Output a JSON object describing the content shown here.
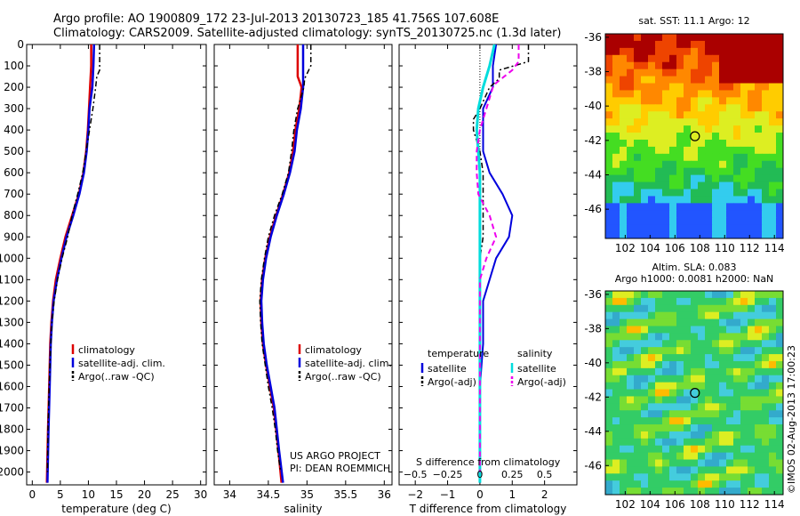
{
  "header": {
    "line1": "Argo profile: AO 1900809_172 23-Jul-2013 20130723_185 41.756S 107.608E",
    "line2": "Climatology: CARS2009. Satellite-adjusted climatology: synTS_20130725.nc (1.3d later)"
  },
  "depth_ticks": [
    0,
    100,
    200,
    300,
    400,
    500,
    600,
    700,
    800,
    900,
    1000,
    1100,
    1200,
    1300,
    1400,
    1500,
    1600,
    1700,
    1800,
    1900,
    2000
  ],
  "colors": {
    "climatology": "#dd0000",
    "satellite": "#0000dd",
    "argo": "#000000",
    "satellite_s": "#00dddd",
    "argo_s": "#ee00ee"
  },
  "chart_data": [
    {
      "type": "line",
      "xlabel": "temperature (deg C)",
      "xlim": [
        -1,
        31
      ],
      "ylim": [
        2060,
        0
      ],
      "xticks": [
        0,
        5,
        10,
        15,
        20,
        25,
        30
      ],
      "legend": [
        "climatology",
        "satellite-adj. clim.",
        "Argo(..raw -QC)"
      ],
      "series": [
        {
          "name": "climatology",
          "depth": [
            0,
            100,
            200,
            300,
            400,
            500,
            600,
            700,
            800,
            900,
            1000,
            1100,
            1200,
            1300,
            1400,
            1600,
            1800,
            2050
          ],
          "values": [
            10.5,
            10.5,
            10.3,
            10.1,
            9.9,
            9.6,
            9.1,
            8.3,
            7.1,
            5.9,
            5.0,
            4.2,
            3.7,
            3.4,
            3.2,
            3.0,
            2.8,
            2.6
          ]
        },
        {
          "name": "satellite-adj. clim.",
          "depth": [
            0,
            100,
            200,
            300,
            400,
            500,
            600,
            700,
            800,
            900,
            1000,
            1100,
            1200,
            1300,
            1400,
            1600,
            1800,
            2050
          ],
          "values": [
            11.0,
            10.9,
            10.7,
            10.2,
            10.0,
            9.7,
            9.2,
            8.4,
            7.3,
            6.1,
            5.2,
            4.4,
            3.8,
            3.5,
            3.3,
            3.1,
            2.9,
            2.7
          ]
        },
        {
          "name": "Argo(..raw -QC)",
          "depth": [
            0,
            120,
            150,
            200,
            300,
            400,
            500,
            600,
            700,
            800,
            900,
            1000,
            1100,
            1200,
            1300,
            1400,
            1600,
            1800,
            2000
          ],
          "values": [
            12.0,
            12.0,
            11.5,
            11.3,
            10.8,
            10.2,
            9.6,
            9.0,
            8.1,
            7.1,
            6.3,
            5.3,
            4.5,
            3.9,
            3.5,
            3.3,
            3.0,
            2.8,
            2.7
          ]
        }
      ]
    },
    {
      "type": "line",
      "xlabel": "salinity",
      "xlim": [
        33.8,
        36.1
      ],
      "ylim": [
        2060,
        0
      ],
      "xticks": [
        34,
        34.5,
        35,
        35.5,
        36
      ],
      "legend": [
        "climatology",
        "satellite-adj. clim.",
        "Argo(..raw -QC)"
      ],
      "series": [
        {
          "name": "climatology",
          "depth": [
            0,
            150,
            200,
            300,
            400,
            500,
            600,
            700,
            800,
            900,
            1000,
            1100,
            1200,
            1300,
            1400,
            1500,
            1600,
            1700,
            1800,
            1900,
            2050
          ],
          "values": [
            34.88,
            34.88,
            34.93,
            34.9,
            34.85,
            34.82,
            34.77,
            34.69,
            34.6,
            34.52,
            34.46,
            34.42,
            34.4,
            34.41,
            34.43,
            34.47,
            34.52,
            34.57,
            34.6,
            34.63,
            34.67
          ]
        },
        {
          "name": "satellite-adj. clim.",
          "depth": [
            0,
            150,
            200,
            300,
            400,
            500,
            600,
            700,
            800,
            900,
            1000,
            1100,
            1200,
            1300,
            1400,
            1500,
            1600,
            1700,
            1800,
            1900,
            2050
          ],
          "values": [
            34.95,
            34.95,
            34.95,
            34.92,
            34.87,
            34.84,
            34.78,
            34.7,
            34.61,
            34.53,
            34.47,
            34.43,
            34.41,
            34.42,
            34.44,
            34.48,
            34.53,
            34.58,
            34.61,
            34.64,
            34.69
          ]
        },
        {
          "name": "Argo(..raw -QC)",
          "depth": [
            0,
            100,
            160,
            200,
            300,
            400,
            500,
            600,
            700,
            800,
            900,
            1000,
            1100,
            1200,
            1300,
            1400,
            1500,
            1600,
            1700,
            1800,
            1900,
            2000
          ],
          "values": [
            35.05,
            35.05,
            34.97,
            34.96,
            34.88,
            34.83,
            34.8,
            34.76,
            34.68,
            34.58,
            34.5,
            34.45,
            34.41,
            34.39,
            34.4,
            34.42,
            34.46,
            34.5,
            34.55,
            34.59,
            34.62,
            34.66
          ]
        }
      ]
    },
    {
      "type": "line",
      "xlabel": "T difference from climatology",
      "xlabel_top": "S difference from climatology",
      "xlim": [
        -2.5,
        3.0
      ],
      "ylim": [
        2060,
        0
      ],
      "xticks": [
        -2,
        -1,
        0,
        1,
        2
      ],
      "xticks_labels": [
        "−2",
        "−1",
        "0",
        "1",
        "2"
      ],
      "xticks_top": [
        -0.5,
        -0.25,
        0,
        0.25,
        0.5
      ],
      "xticks_top_labels": [
        "−0.5",
        "−0.25",
        "0",
        "0.25",
        "0.5"
      ],
      "legend": {
        "left_title": "temperature",
        "right_title": "salinity",
        "left": [
          "satellite",
          "Argo(-adj)"
        ],
        "right": [
          "satellite",
          "Argo(-adj)"
        ]
      },
      "series": [
        {
          "name": "satellite",
          "depth": [
            0,
            100,
            200,
            300,
            400,
            500,
            600,
            700,
            800,
            900,
            1000,
            1100,
            1200,
            1400,
            1600,
            1800,
            2050
          ],
          "values": [
            0.5,
            0.4,
            0.4,
            0.1,
            0.1,
            0.1,
            0.3,
            0.7,
            1.0,
            0.9,
            0.5,
            0.3,
            0.1,
            0.1,
            0.0,
            0.0,
            0.0
          ]
        },
        {
          "name": "Argo(-adj)",
          "depth": [
            0,
            80,
            120,
            160,
            200,
            300,
            350,
            400,
            500,
            600,
            700,
            800,
            900,
            1000,
            1100,
            1200,
            1400,
            1600,
            1800,
            2000
          ],
          "values": [
            1.5,
            1.5,
            0.6,
            0.6,
            0.3,
            0.0,
            -0.2,
            -0.2,
            0.0,
            0.1,
            0.1,
            0.1,
            0.1,
            0.0,
            0.0,
            0.0,
            0.0,
            0.0,
            0.0,
            0.0
          ]
        },
        {
          "name": "satellite S",
          "depth": [
            0,
            100,
            200,
            300,
            400,
            500,
            600,
            700,
            800,
            900,
            1000,
            1200,
            1400,
            1600,
            1800,
            2050
          ],
          "values": [
            0.45,
            0.3,
            0.1,
            -0.05,
            -0.1,
            -0.05,
            0,
            0,
            0,
            0,
            0,
            0,
            0,
            0,
            0,
            0
          ]
        },
        {
          "name": "Argo(-adj) S",
          "depth": [
            0,
            80,
            120,
            180,
            200,
            300,
            400,
            500,
            600,
            700,
            800,
            900,
            1000,
            1100,
            1200,
            1400,
            1600,
            1800,
            2000
          ],
          "values": [
            1.2,
            1.2,
            1.0,
            0.5,
            0.4,
            0.2,
            0.0,
            -0.1,
            -0.1,
            -0.05,
            0.3,
            0.5,
            0.2,
            0.0,
            0.0,
            0.0,
            0.0,
            0.0,
            0.0
          ]
        }
      ]
    }
  ],
  "maps": {
    "top": {
      "title": "sat. SST: 11.1  Argo: 12",
      "lat_ticks": [
        -36,
        -38,
        -40,
        -42,
        -44,
        -46
      ],
      "lon_ticks": [
        102,
        104,
        106,
        108,
        110,
        112,
        114
      ]
    },
    "bottom": {
      "title1": "Altim. SLA: 0.083",
      "title2": "Argo h1000: 0.0081 h2000: NaN",
      "lat_ticks": [
        -36,
        -38,
        -40,
        -42,
        -44,
        -46
      ],
      "lon_ticks": [
        102,
        104,
        106,
        108,
        110,
        112,
        114
      ]
    },
    "float_position": {
      "lon": 107.608,
      "lat": -41.756
    }
  },
  "credit_line1": "US ARGO PROJECT",
  "credit_line2": "PI: DEAN ROEMMICH",
  "stamp": "©IMOS 02-Aug-2013 17:00:23"
}
